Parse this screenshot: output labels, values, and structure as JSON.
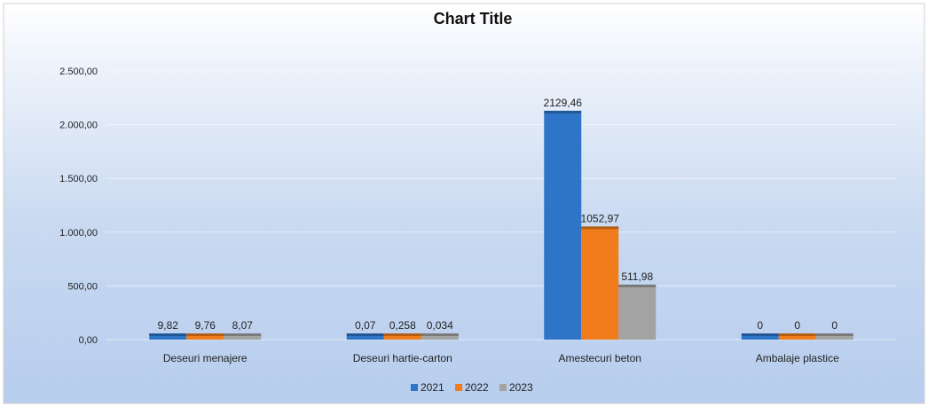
{
  "chart_data": {
    "type": "bar",
    "title": "Chart Title",
    "xlabel": "",
    "ylabel": "",
    "ylim": [
      0,
      2500
    ],
    "y_ticks": [
      "0,00",
      "500,00",
      "1.000,00",
      "1.500,00",
      "2.000,00",
      "2.500,00"
    ],
    "y_tick_values": [
      0,
      500,
      1000,
      1500,
      2000,
      2500
    ],
    "categories": [
      "Deseuri menajere",
      "Deseuri hartie-carton",
      "Amestecuri beton",
      "Ambalaje plastice"
    ],
    "series": [
      {
        "name": "2021",
        "color": "#2e75c8",
        "values": [
          9.82,
          0.07,
          2129.46,
          0
        ],
        "labels": [
          "9,82",
          "0,07",
          "2129,46",
          "0"
        ]
      },
      {
        "name": "2022",
        "color": "#f07c1b",
        "values": [
          9.76,
          0.258,
          1052.97,
          0
        ],
        "labels": [
          "9,76",
          "0,258",
          "1052,97",
          "0"
        ]
      },
      {
        "name": "2023",
        "color": "#a3a3a3",
        "values": [
          8.07,
          0.034,
          511.98,
          0
        ],
        "labels": [
          "8,07",
          "0,034",
          "511,98",
          "0"
        ]
      }
    ],
    "grid": true,
    "legend_position": "bottom"
  }
}
